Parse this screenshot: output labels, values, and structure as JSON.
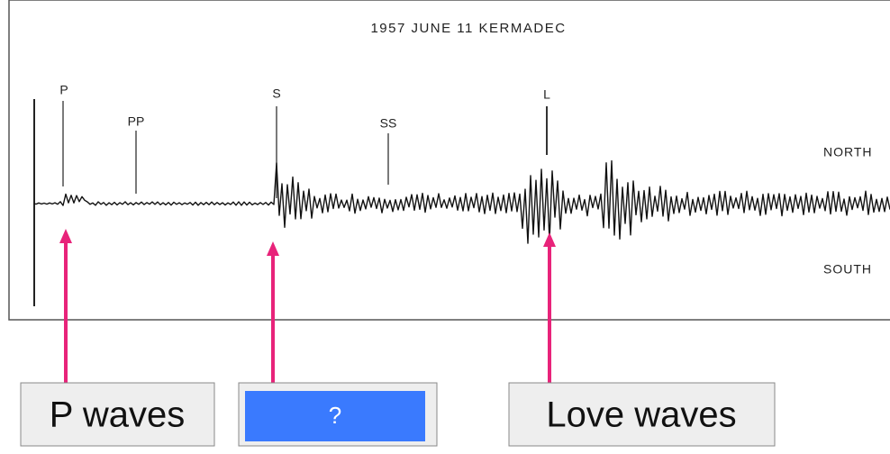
{
  "title": "1957 JUNE 11 KERMADEC",
  "phases": [
    "P",
    "PP",
    "S",
    "SS",
    "L"
  ],
  "directions": [
    "NORTH",
    "SOUTH"
  ],
  "callouts": [
    "P waves",
    "?",
    "Love waves"
  ]
}
